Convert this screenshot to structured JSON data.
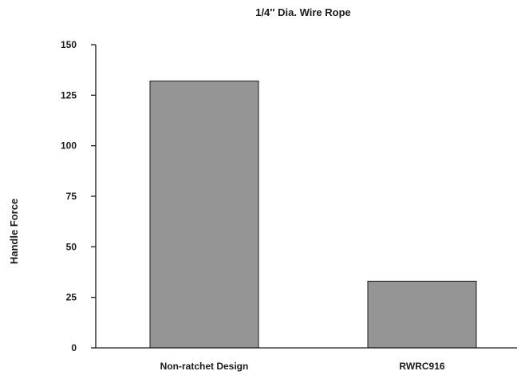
{
  "chart_data": {
    "type": "bar",
    "title": "1/4″ Dia. Wire Rope",
    "ylabel": "Handle Force",
    "xlabel": "",
    "categories": [
      "Non-ratchet Design",
      "RWRC916"
    ],
    "values": [
      132,
      33
    ],
    "ylim": [
      0,
      150
    ],
    "yticks": [
      "0",
      "25",
      "50",
      "75",
      "100",
      "125",
      "150"
    ],
    "bar_color": "#959595",
    "grid": false,
    "legend": "none"
  }
}
